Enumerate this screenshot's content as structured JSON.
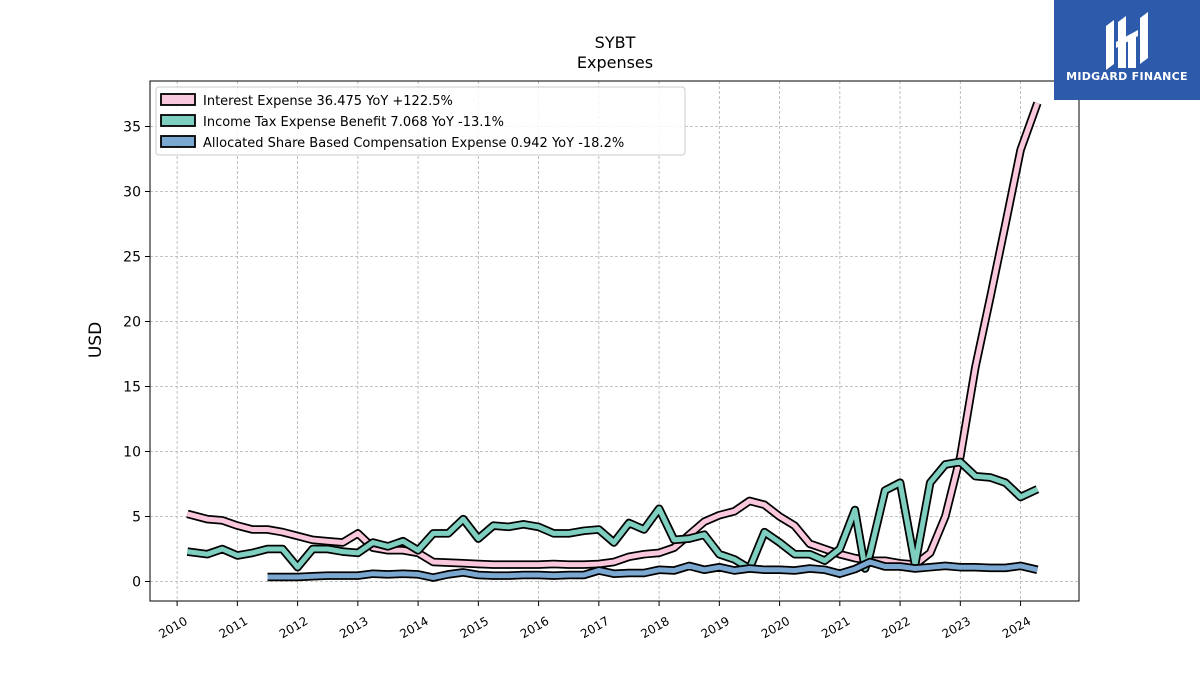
{
  "brand": {
    "name": "MIDGARD FINANCE",
    "color": "#2d5aab"
  },
  "chart_data": {
    "type": "line",
    "title": "SYBT",
    "subtitle": "Expenses",
    "xlabel": "",
    "ylabel": "USD",
    "xlim": [
      2009.55,
      2024.97
    ],
    "ylim": [
      -1.5,
      38.5
    ],
    "yticks": [
      0,
      5,
      10,
      15,
      20,
      25,
      30,
      35
    ],
    "xticks": [
      "2010",
      "2011",
      "2012",
      "2013",
      "2014",
      "2015",
      "2016",
      "2017",
      "2018",
      "2019",
      "2020",
      "2021",
      "2022",
      "2023",
      "2024"
    ],
    "grid": true,
    "legend_position": "top-left",
    "series": [
      {
        "name": "Interest Expense",
        "legend_label": "Interest Expense  36.475 YoY +122.5%",
        "color": "#f9c8dc",
        "x": [
          2010.17,
          2010.5,
          2010.75,
          2011.0,
          2011.25,
          2011.5,
          2011.75,
          2012.0,
          2012.25,
          2012.5,
          2012.75,
          2013.0,
          2013.25,
          2013.5,
          2013.75,
          2014.0,
          2014.25,
          2014.5,
          2014.75,
          2015.0,
          2015.25,
          2015.5,
          2015.75,
          2016.0,
          2016.25,
          2016.5,
          2016.75,
          2017.0,
          2017.25,
          2017.5,
          2017.75,
          2018.0,
          2018.25,
          2018.5,
          2018.75,
          2019.0,
          2019.25,
          2019.5,
          2019.75,
          2020.0,
          2020.25,
          2020.5,
          2020.75,
          2021.0,
          2021.25,
          2021.5,
          2021.75,
          2022.0,
          2022.25,
          2022.5,
          2022.75,
          2023.0,
          2023.25,
          2023.5,
          2023.75,
          2024.0,
          2024.28
        ],
        "values": [
          5.2,
          4.8,
          4.7,
          4.3,
          4.0,
          4.0,
          3.8,
          3.5,
          3.2,
          3.1,
          3.0,
          3.7,
          2.6,
          2.4,
          2.4,
          2.2,
          1.5,
          1.45,
          1.4,
          1.35,
          1.3,
          1.3,
          1.3,
          1.3,
          1.35,
          1.3,
          1.3,
          1.35,
          1.5,
          1.9,
          2.1,
          2.2,
          2.6,
          3.6,
          4.6,
          5.1,
          5.4,
          6.2,
          5.9,
          5.0,
          4.3,
          2.9,
          2.5,
          2.1,
          1.8,
          1.6,
          1.6,
          1.4,
          1.3,
          2.2,
          5.0,
          9.6,
          16.5,
          21.9,
          27.5,
          33.2,
          36.8
        ]
      },
      {
        "name": "Income Tax Expense Benefit",
        "legend_label": "Income Tax Expense Benefit  7.068 YoY -13.1%",
        "color": "#7ecfc0",
        "x": [
          2010.17,
          2010.5,
          2010.75,
          2011.0,
          2011.25,
          2011.5,
          2011.75,
          2012.0,
          2012.25,
          2012.5,
          2012.75,
          2013.0,
          2013.25,
          2013.5,
          2013.75,
          2014.0,
          2014.25,
          2014.5,
          2014.75,
          2015.0,
          2015.25,
          2015.5,
          2015.75,
          2016.0,
          2016.25,
          2016.5,
          2016.75,
          2017.0,
          2017.25,
          2017.5,
          2017.75,
          2018.0,
          2018.25,
          2018.5,
          2018.75,
          2019.0,
          2019.25,
          2019.5,
          2019.75,
          2020.0,
          2020.25,
          2020.5,
          2020.75,
          2021.0,
          2021.25,
          2021.42,
          2021.5,
          2021.75,
          2022.0,
          2022.25,
          2022.5,
          2022.75,
          2023.0,
          2023.25,
          2023.5,
          2023.75,
          2024.0,
          2024.28
        ],
        "values": [
          2.3,
          2.1,
          2.5,
          2.0,
          2.2,
          2.5,
          2.5,
          1.1,
          2.5,
          2.5,
          2.3,
          2.2,
          3.0,
          2.7,
          3.1,
          2.4,
          3.7,
          3.7,
          4.8,
          3.3,
          4.3,
          4.2,
          4.4,
          4.2,
          3.7,
          3.7,
          3.9,
          4.0,
          3.0,
          4.5,
          4.0,
          5.6,
          3.2,
          3.3,
          3.6,
          2.1,
          1.7,
          1.0,
          3.8,
          3.0,
          2.1,
          2.1,
          1.6,
          2.5,
          5.5,
          1.0,
          2.1,
          7.0,
          7.6,
          1.3,
          7.6,
          9.0,
          9.2,
          8.1,
          8.0,
          7.6,
          6.5,
          7.1
        ]
      },
      {
        "name": "Allocated Share Based Compensation Expense",
        "legend_label": "Allocated Share Based Compensation Expense  0.942 YoY -18.2%",
        "color": "#7ba8d0",
        "x": [
          2011.5,
          2011.75,
          2012.0,
          2012.25,
          2012.5,
          2012.75,
          2013.0,
          2013.25,
          2013.5,
          2013.75,
          2014.0,
          2014.25,
          2014.5,
          2014.75,
          2015.0,
          2015.25,
          2015.5,
          2015.75,
          2016.0,
          2016.25,
          2016.5,
          2016.75,
          2017.0,
          2017.25,
          2017.5,
          2017.75,
          2018.0,
          2018.25,
          2018.5,
          2018.75,
          2019.0,
          2019.25,
          2019.5,
          2019.75,
          2020.0,
          2020.25,
          2020.5,
          2020.75,
          2021.0,
          2021.25,
          2021.5,
          2021.75,
          2022.0,
          2022.25,
          2022.5,
          2022.75,
          2023.0,
          2023.25,
          2023.5,
          2023.75,
          2024.0,
          2024.28
        ],
        "values": [
          0.35,
          0.35,
          0.35,
          0.4,
          0.45,
          0.45,
          0.45,
          0.6,
          0.55,
          0.6,
          0.55,
          0.3,
          0.55,
          0.7,
          0.5,
          0.45,
          0.45,
          0.5,
          0.5,
          0.45,
          0.5,
          0.5,
          0.85,
          0.6,
          0.65,
          0.65,
          0.9,
          0.85,
          1.2,
          0.9,
          1.1,
          0.85,
          1.0,
          0.9,
          0.9,
          0.85,
          1.0,
          0.9,
          0.6,
          0.95,
          1.5,
          1.15,
          1.15,
          1.0,
          1.1,
          1.2,
          1.1,
          1.1,
          1.05,
          1.05,
          1.2,
          0.9
        ]
      }
    ]
  }
}
